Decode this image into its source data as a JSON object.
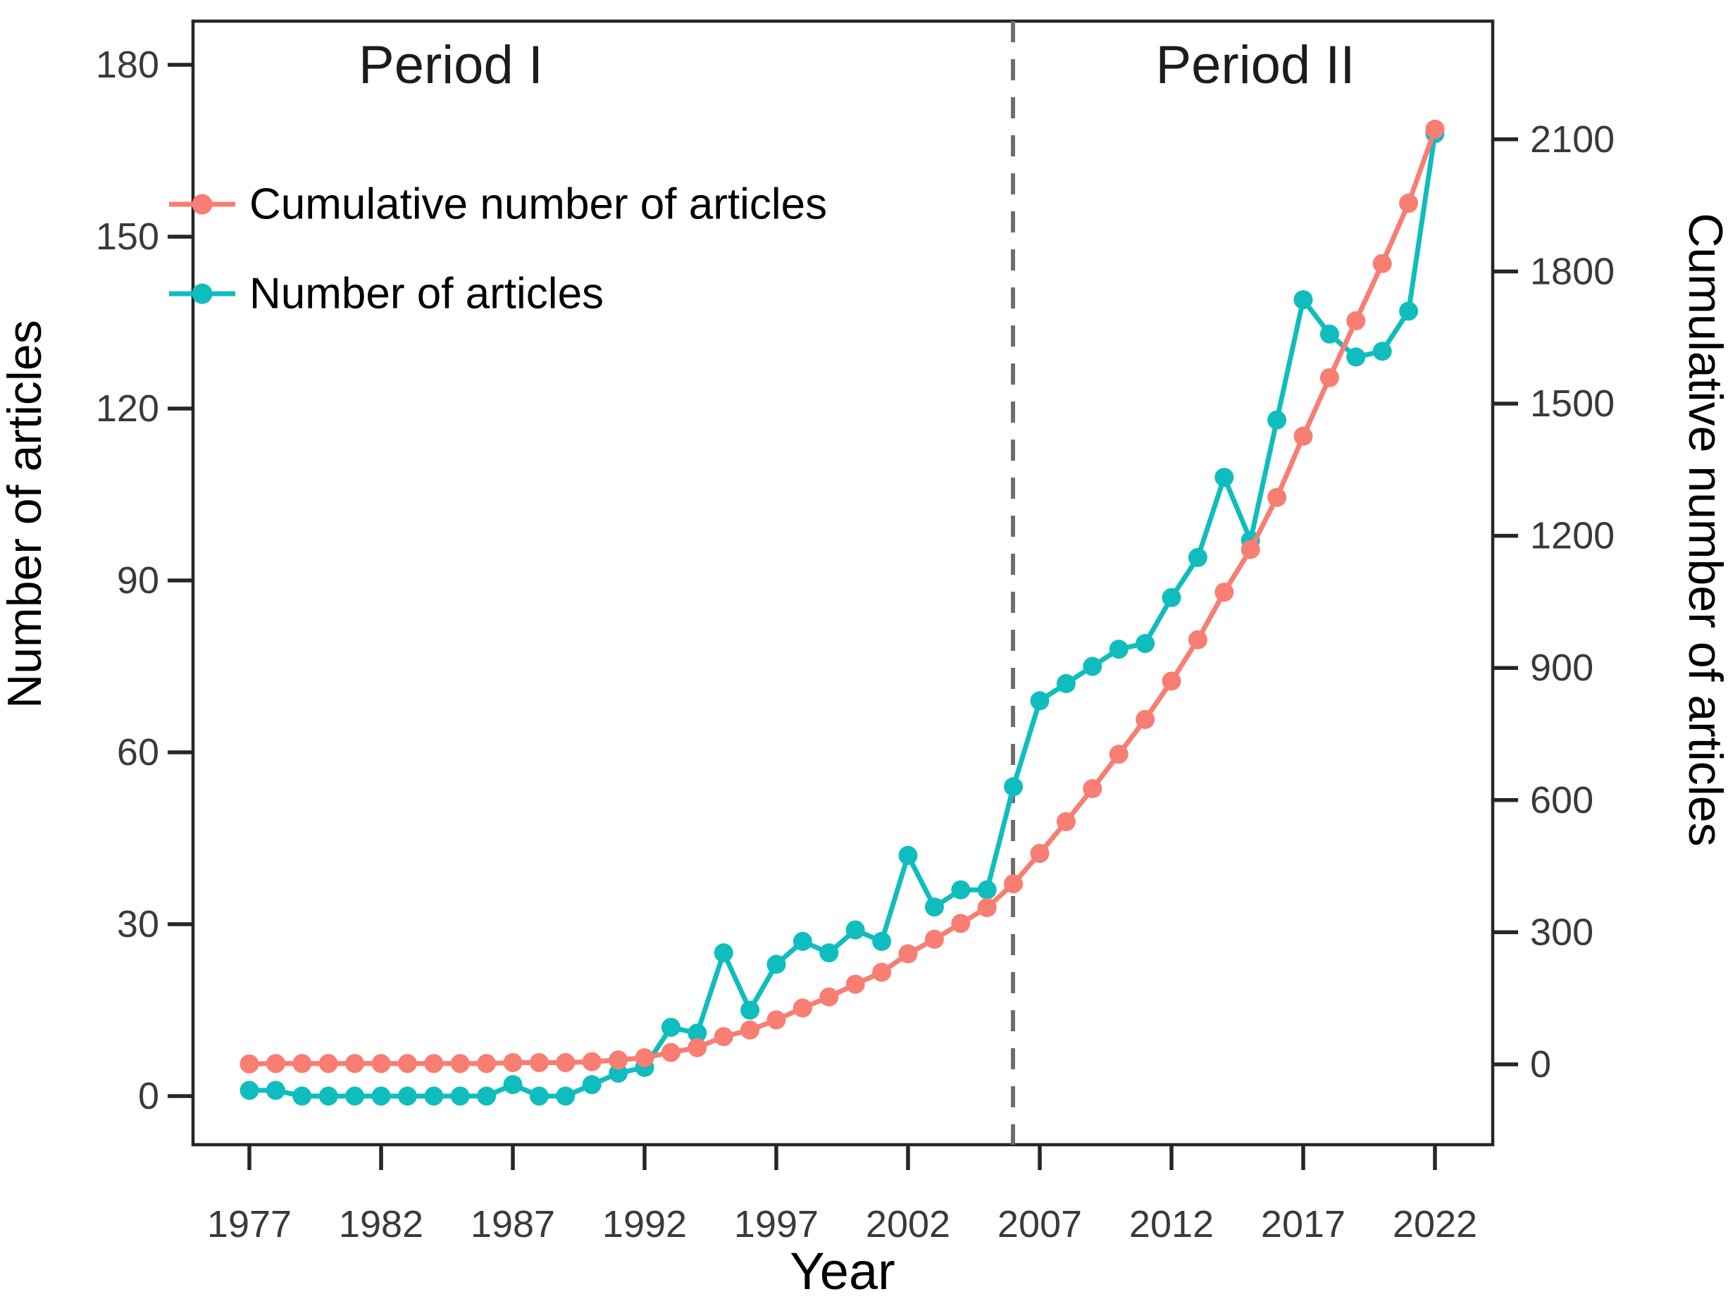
{
  "chart_data": {
    "type": "line",
    "title": "",
    "xlabel": "Year",
    "ylabel_left": "Number of articles",
    "ylabel_right": "Cumulative number of articles",
    "x_range": [
      1977,
      2022
    ],
    "x_ticks": [
      1977,
      1982,
      1987,
      1992,
      1997,
      2002,
      2007,
      2012,
      2017,
      2022
    ],
    "y_left_ticks": [
      0,
      30,
      60,
      90,
      120,
      150,
      180
    ],
    "y_left_range": [
      0,
      180
    ],
    "y_right_ticks": [
      0,
      300,
      600,
      900,
      1200,
      1500,
      1800,
      2100
    ],
    "y_right_range": [
      0,
      2100
    ],
    "grid": "off",
    "legend_position": "top-left-inside",
    "years": [
      1977,
      1978,
      1979,
      1980,
      1981,
      1982,
      1983,
      1984,
      1985,
      1986,
      1987,
      1988,
      1989,
      1990,
      1991,
      1992,
      1993,
      1994,
      1995,
      1996,
      1997,
      1998,
      1999,
      2000,
      2001,
      2002,
      2003,
      2004,
      2005,
      2006,
      2007,
      2008,
      2009,
      2010,
      2011,
      2012,
      2013,
      2014,
      2015,
      2016,
      2017,
      2018,
      2019,
      2020,
      2021,
      2022
    ],
    "series": [
      {
        "name": "Cumulative number of articles",
        "axis": "right",
        "color": "#f87d72",
        "marker": "circle",
        "values": [
          1,
          2,
          2,
          2,
          2,
          2,
          2,
          2,
          2,
          2,
          4,
          4,
          4,
          6,
          10,
          15,
          27,
          38,
          63,
          78,
          101,
          128,
          153,
          182,
          209,
          251,
          284,
          320,
          356,
          410,
          479,
          551,
          626,
          704,
          783,
          870,
          964,
          1072,
          1169,
          1287,
          1426,
          1559,
          1688,
          1818,
          1955,
          2123
        ]
      },
      {
        "name": "Number of articles",
        "axis": "left",
        "color": "#10bdbe",
        "marker": "circle",
        "values": [
          1,
          1,
          0,
          0,
          0,
          0,
          0,
          0,
          0,
          0,
          2,
          0,
          0,
          2,
          4,
          5,
          12,
          11,
          25,
          15,
          23,
          27,
          25,
          29,
          27,
          42,
          33,
          36,
          36,
          54,
          69,
          72,
          75,
          78,
          79,
          87,
          94,
          108,
          97,
          118,
          139,
          133,
          129,
          130,
          137,
          168
        ]
      }
    ],
    "annotations": {
      "period1": "Period I",
      "period2": "Period II",
      "divider_year": 2006,
      "divider_style": "dashed",
      "divider_color": "#6e6e6e"
    }
  },
  "colors": {
    "cumulative": "#f87d72",
    "annual": "#10bdbe",
    "axis": "#262626",
    "tick_text": "#3a3a3a",
    "divider": "#6e6e6e",
    "background": "#ffffff"
  }
}
